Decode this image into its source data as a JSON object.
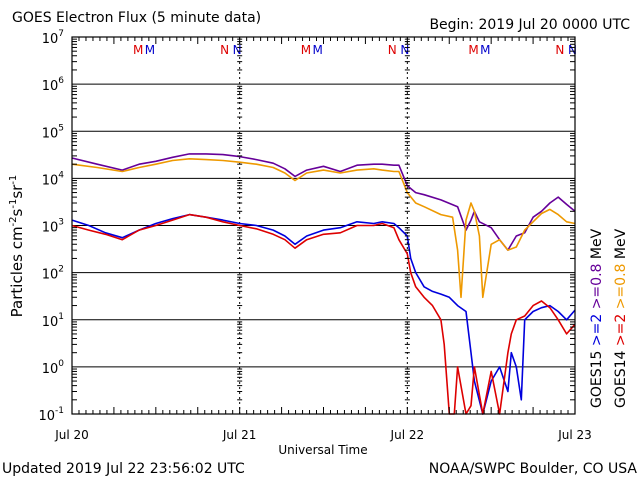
{
  "header": {
    "title": "GOES Electron Flux (5 minute data)",
    "begin": "Begin: 2019 Jul 20 0000 UTC"
  },
  "footer": {
    "updated": "Updated 2019 Jul 22 23:56:02 UTC",
    "credit": "NOAA/SWPC Boulder, CO USA"
  },
  "chart_data": {
    "type": "line",
    "title": "GOES Electron Flux (5 minute data)",
    "xlabel": "Universal Time",
    "ylabel": "Particles cm-2 s-1 sr-1",
    "y_scale": "log",
    "ylim": [
      0.1,
      10000000
    ],
    "xlim": [
      0,
      3
    ],
    "x_unit": "days since 2019 Jul 20 0000 UTC",
    "x_tick_labels": [
      "Jul 20",
      "Jul 21",
      "Jul 22",
      "Jul 23"
    ],
    "y_tick_labels": [
      {
        "base": "10",
        "exp": "7"
      },
      {
        "base": "10",
        "exp": "6"
      },
      {
        "base": "10",
        "exp": "5"
      },
      {
        "base": "10",
        "exp": "4"
      },
      {
        "base": "10",
        "exp": "3"
      },
      {
        "base": "10",
        "exp": "2"
      },
      {
        "base": "10",
        "exp": "1"
      },
      {
        "base": "10",
        "exp": "0"
      },
      {
        "base": "10",
        "exp": "-1"
      }
    ],
    "threshold": 1000,
    "grid": true,
    "markers": [
      {
        "label": "M",
        "x": 0.395,
        "color": "#dd0000"
      },
      {
        "label": "M",
        "x": 0.465,
        "color": "#0000cc"
      },
      {
        "label": "N",
        "x": 0.91,
        "color": "#dd0000"
      },
      {
        "label": "N",
        "x": 0.985,
        "color": "#0000cc"
      },
      {
        "label": "M",
        "x": 1.395,
        "color": "#dd0000"
      },
      {
        "label": "M",
        "x": 1.465,
        "color": "#0000cc"
      },
      {
        "label": "N",
        "x": 1.91,
        "color": "#dd0000"
      },
      {
        "label": "N",
        "x": 1.985,
        "color": "#0000cc"
      },
      {
        "label": "M",
        "x": 2.395,
        "color": "#dd0000"
      },
      {
        "label": "M",
        "x": 2.465,
        "color": "#0000cc"
      },
      {
        "label": "N",
        "x": 2.91,
        "color": "#dd0000"
      },
      {
        "label": "N",
        "x": 2.985,
        "color": "#0000cc"
      }
    ],
    "right_legend": [
      {
        "text": "GOES15",
        "color": "#000000"
      },
      {
        "text": ">=2",
        "color": "#0000dd"
      },
      {
        "text": ">=0.8",
        "color": "#660099"
      },
      {
        "text": "MeV",
        "color": "#000000"
      },
      {
        "text": "GOES14",
        "color": "#000000"
      },
      {
        "text": ">=2",
        "color": "#dd0000"
      },
      {
        "text": ">=0.8",
        "color": "#ee9900"
      },
      {
        "text": "MeV",
        "color": "#000000"
      }
    ],
    "series": [
      {
        "name": "GOES15 >=0.8 MeV",
        "color": "#660099",
        "x": [
          0.0,
          0.15,
          0.3,
          0.4,
          0.5,
          0.6,
          0.7,
          0.8,
          0.9,
          1.0,
          1.1,
          1.2,
          1.27,
          1.33,
          1.4,
          1.5,
          1.6,
          1.7,
          1.8,
          1.85,
          1.92,
          1.95,
          2.0,
          2.05,
          2.1,
          2.2,
          2.3,
          2.35,
          2.38,
          2.4,
          2.43,
          2.5,
          2.55,
          2.6,
          2.65,
          2.7,
          2.75,
          2.8,
          2.85,
          2.9,
          2.95,
          3.0
        ],
        "y": [
          27000,
          20000,
          15000,
          20000,
          23000,
          28000,
          33000,
          33000,
          32000,
          29000,
          25000,
          21000,
          16000,
          11000,
          15000,
          18000,
          14000,
          19000,
          20000,
          20000,
          19000,
          19000,
          7000,
          5000,
          4500,
          3500,
          2500,
          800,
          1300,
          2000,
          1200,
          900,
          500,
          300,
          600,
          700,
          1500,
          2000,
          3000,
          4000,
          2800,
          2000
        ]
      },
      {
        "name": "GOES14 >=0.8 MeV",
        "color": "#ee9900",
        "x": [
          0.0,
          0.15,
          0.3,
          0.4,
          0.5,
          0.6,
          0.7,
          0.8,
          0.9,
          1.0,
          1.1,
          1.2,
          1.27,
          1.33,
          1.4,
          1.5,
          1.6,
          1.7,
          1.8,
          1.85,
          1.92,
          1.95,
          2.0,
          2.05,
          2.1,
          2.2,
          2.27,
          2.3,
          2.32,
          2.35,
          2.38,
          2.4,
          2.43,
          2.45,
          2.5,
          2.55,
          2.6,
          2.65,
          2.7,
          2.75,
          2.8,
          2.85,
          2.9,
          2.95,
          3.0
        ],
        "y": [
          20000,
          17000,
          14000,
          17000,
          20000,
          24000,
          26000,
          25000,
          24000,
          22000,
          20000,
          17000,
          13000,
          9000,
          13000,
          15000,
          13000,
          15000,
          16000,
          15000,
          14000,
          14000,
          5000,
          3000,
          2500,
          1700,
          1500,
          300,
          30,
          1300,
          3000,
          2000,
          600,
          30,
          400,
          500,
          300,
          350,
          800,
          1200,
          1800,
          2200,
          1700,
          1200,
          1100
        ]
      },
      {
        "name": "GOES15 >=2 MeV",
        "color": "#0000dd",
        "x": [
          0.0,
          0.1,
          0.2,
          0.3,
          0.4,
          0.5,
          0.6,
          0.7,
          0.8,
          0.9,
          1.0,
          1.1,
          1.2,
          1.27,
          1.33,
          1.4,
          1.5,
          1.6,
          1.7,
          1.8,
          1.85,
          1.92,
          1.95,
          2.0,
          2.02,
          2.05,
          2.1,
          2.15,
          2.2,
          2.25,
          2.3,
          2.35,
          2.38,
          2.4,
          2.45,
          2.5,
          2.55,
          2.6,
          2.62,
          2.65,
          2.68,
          2.7,
          2.75,
          2.8,
          2.85,
          2.9,
          2.95,
          3.0
        ],
        "y": [
          1300,
          1000,
          700,
          550,
          800,
          1100,
          1400,
          1700,
          1500,
          1300,
          1100,
          1000,
          800,
          600,
          400,
          600,
          800,
          900,
          1200,
          1100,
          1200,
          1100,
          900,
          600,
          200,
          100,
          50,
          40,
          35,
          30,
          20,
          15,
          2,
          0.5,
          0.1,
          0.5,
          1,
          0.3,
          2,
          1,
          0.2,
          10,
          15,
          18,
          20,
          15,
          10,
          16
        ]
      },
      {
        "name": "GOES14 >=2 MeV",
        "color": "#dd0000",
        "x": [
          0.0,
          0.1,
          0.2,
          0.3,
          0.4,
          0.5,
          0.6,
          0.7,
          0.8,
          0.9,
          1.0,
          1.1,
          1.2,
          1.27,
          1.33,
          1.4,
          1.5,
          1.6,
          1.7,
          1.8,
          1.85,
          1.92,
          1.95,
          2.0,
          2.02,
          2.05,
          2.1,
          2.15,
          2.2,
          2.22,
          2.25,
          2.28,
          2.3,
          2.35,
          2.38,
          2.4,
          2.45,
          2.5,
          2.55,
          2.6,
          2.62,
          2.65,
          2.7,
          2.75,
          2.8,
          2.85,
          2.9,
          2.95,
          3.0
        ],
        "y": [
          1000,
          800,
          650,
          500,
          800,
          1000,
          1300,
          1700,
          1500,
          1200,
          1000,
          850,
          650,
          500,
          330,
          500,
          650,
          700,
          1000,
          1000,
          1100,
          900,
          500,
          250,
          100,
          50,
          30,
          20,
          10,
          3,
          0.1,
          0.1,
          1,
          0.1,
          0.15,
          1,
          0.1,
          0.8,
          0.1,
          2,
          5,
          10,
          12,
          20,
          25,
          18,
          10,
          5,
          8
        ]
      }
    ]
  }
}
